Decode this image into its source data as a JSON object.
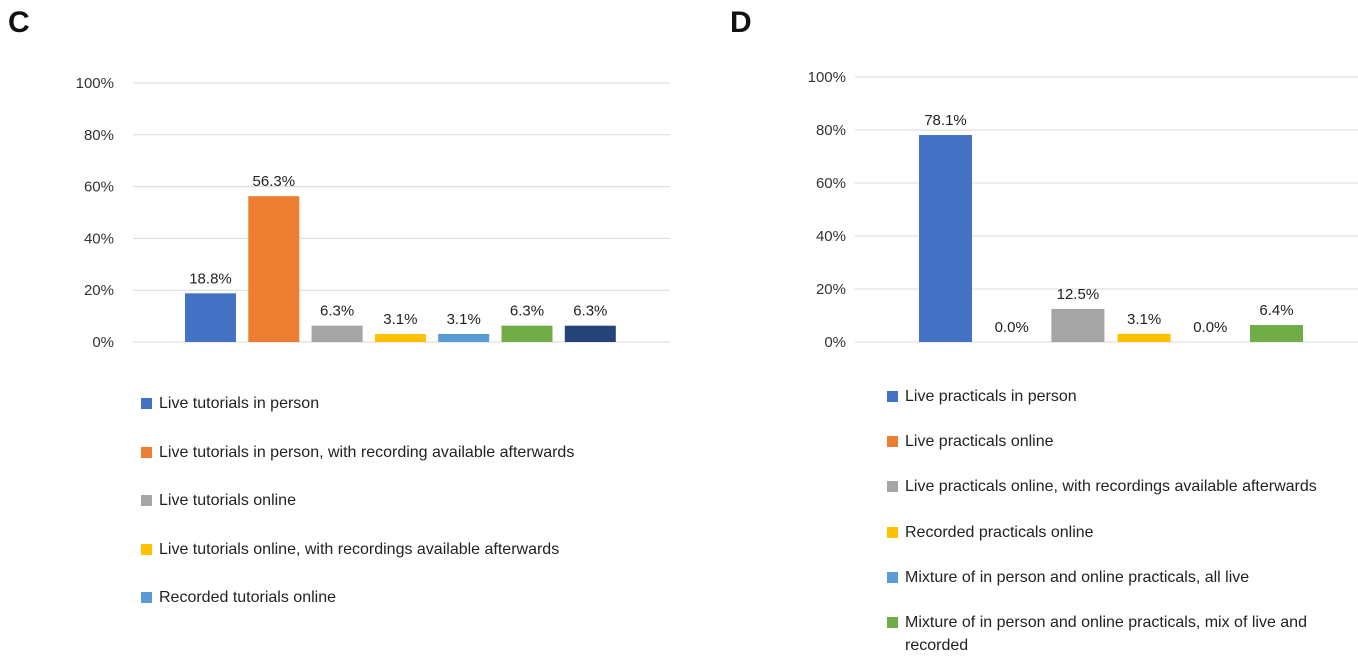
{
  "chart_data": [
    {
      "panel_label": "C",
      "type": "bar",
      "ylim": [
        0,
        100
      ],
      "yticks": [
        "0%",
        "20%",
        "40%",
        "60%",
        "80%",
        "100%"
      ],
      "grid": true,
      "legend_position": "bottom",
      "series": [
        {
          "name": "Live tutorials in person",
          "value": 18.8,
          "label": "18.8%",
          "color": "#4472C4"
        },
        {
          "name": "Live tutorials in person, with recording available afterwards",
          "value": 56.3,
          "label": "56.3%",
          "color": "#ED7D31"
        },
        {
          "name": "Live tutorials online",
          "value": 6.3,
          "label": "6.3%",
          "color": "#A5A5A5"
        },
        {
          "name": "Live tutorials online, with recordings available afterwards",
          "value": 3.1,
          "label": "3.1%",
          "color": "#FFC000"
        },
        {
          "name": "Recorded tutorials online",
          "value": 3.1,
          "label": "3.1%",
          "color": "#5B9BD5"
        },
        {
          "name": "",
          "value": 6.3,
          "label": "6.3%",
          "color": "#70AD47"
        },
        {
          "name": "",
          "value": 6.3,
          "label": "6.3%",
          "color": "#264478"
        }
      ]
    },
    {
      "panel_label": "D",
      "type": "bar",
      "ylim": [
        0,
        100
      ],
      "yticks": [
        "0%",
        "20%",
        "40%",
        "60%",
        "80%",
        "100%"
      ],
      "grid": true,
      "legend_position": "bottom",
      "series": [
        {
          "name": "Live practicals in person",
          "value": 78.1,
          "label": "78.1%",
          "color": "#4472C4"
        },
        {
          "name": "Live practicals online",
          "value": 0.0,
          "label": "0.0%",
          "color": "#ED7D31"
        },
        {
          "name": "Live practicals online, with recordings available afterwards",
          "value": 12.5,
          "label": "12.5%",
          "color": "#A5A5A5"
        },
        {
          "name": "Recorded practicals online",
          "value": 3.1,
          "label": "3.1%",
          "color": "#FFC000"
        },
        {
          "name": "Mixture of in person and online practicals, all live",
          "value": 0.0,
          "label": "0.0%",
          "color": "#5B9BD5"
        },
        {
          "name": "Mixture of in person and online practicals, mix of live and recorded",
          "value": 6.4,
          "label": "6.4%",
          "color": "#70AD47"
        }
      ]
    }
  ]
}
